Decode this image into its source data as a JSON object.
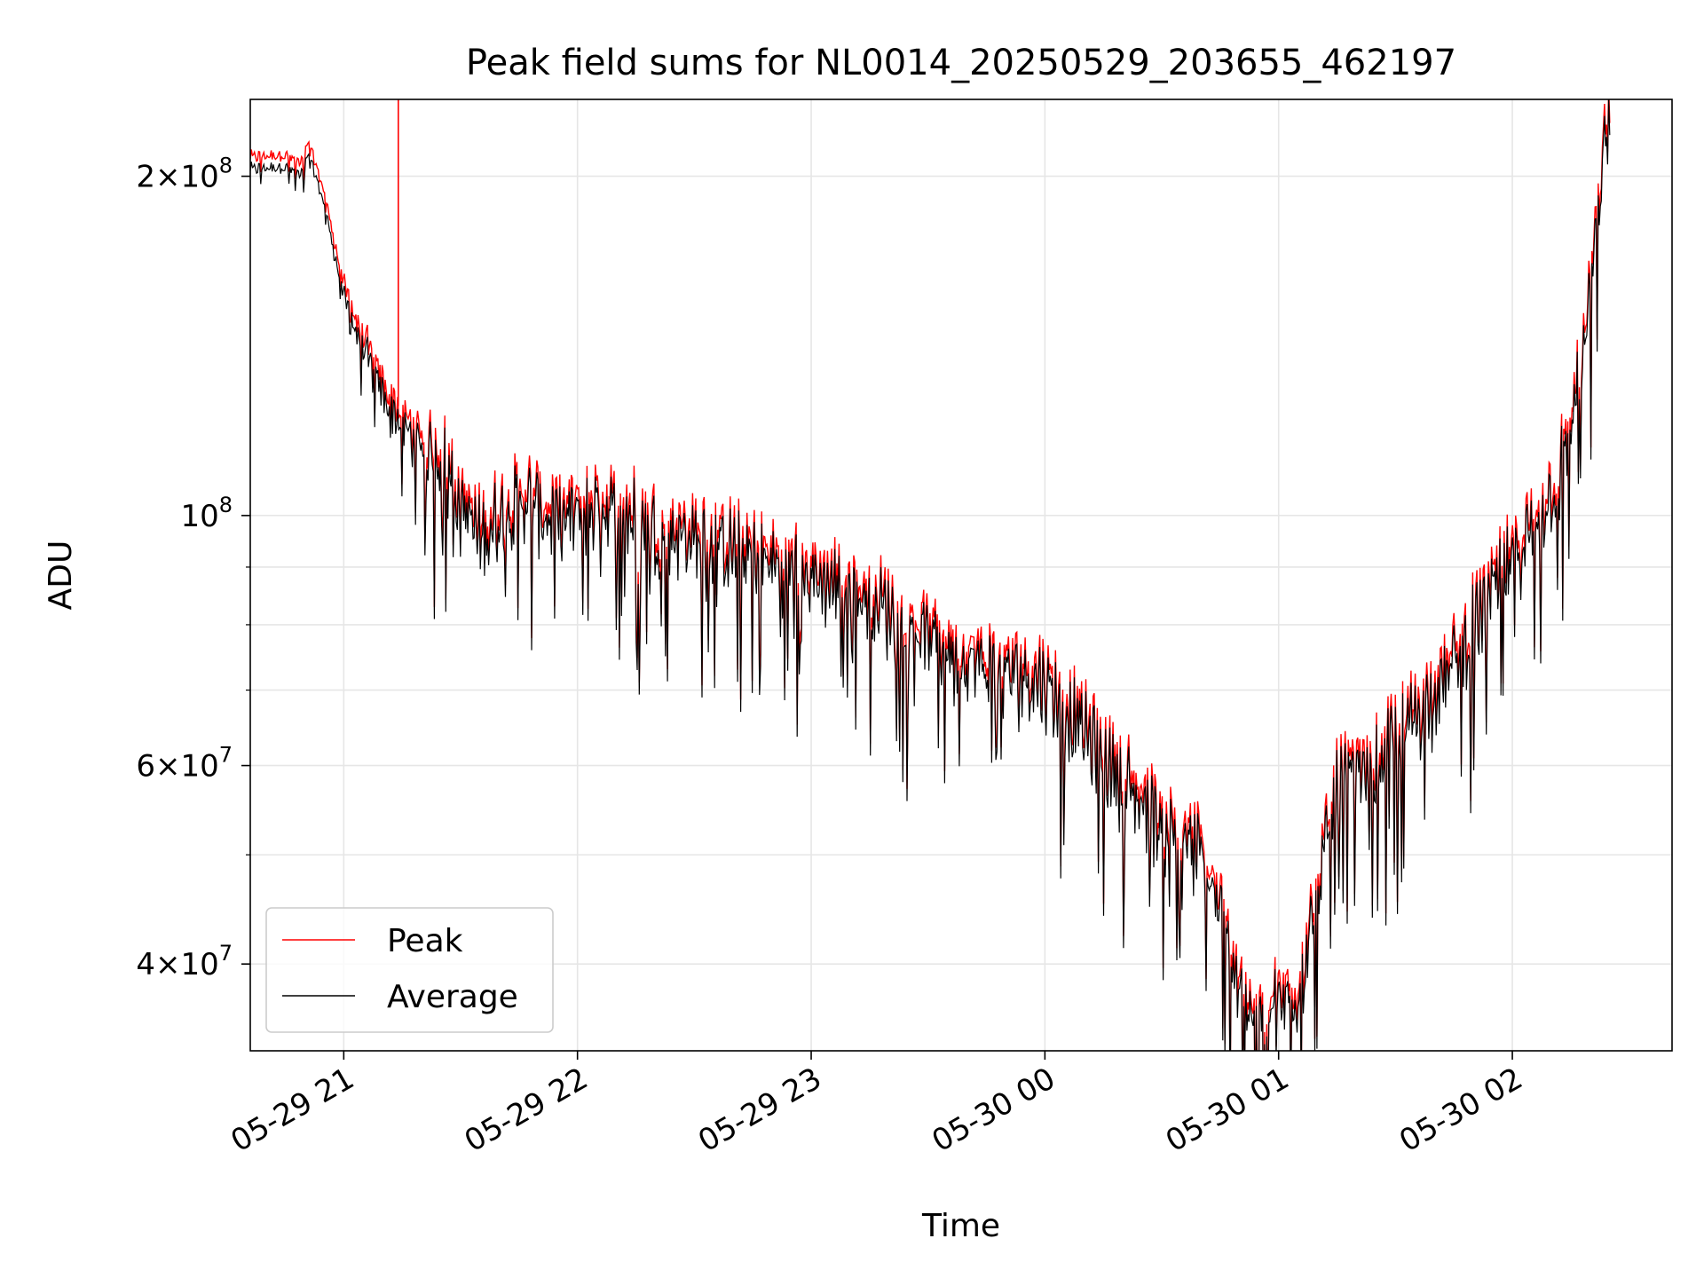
{
  "chart_data": {
    "type": "line",
    "title": "Peak field sums for NL0014_20250529_203655_462197",
    "xlabel": "Time",
    "ylabel": "ADU",
    "y_scale": "log",
    "grid": true,
    "legend_position": "lower-left",
    "xlim": [
      "2025-05-29 20:36",
      "2025-05-30 02:41"
    ],
    "ylim": [
      33500000,
      234000000
    ],
    "x_ticks": [
      {
        "value": "2025-05-29 21:00",
        "label": "05-29 21"
      },
      {
        "value": "2025-05-29 22:00",
        "label": "05-29 22"
      },
      {
        "value": "2025-05-29 23:00",
        "label": "05-29 23"
      },
      {
        "value": "2025-05-30 00:00",
        "label": "05-30 00"
      },
      {
        "value": "2025-05-30 01:00",
        "label": "05-30 01"
      },
      {
        "value": "2025-05-30 02:00",
        "label": "05-30 02"
      }
    ],
    "y_major_ticks": [
      {
        "value": 40000000,
        "mant": "4",
        "exp": "7"
      },
      {
        "value": 60000000,
        "mant": "6",
        "exp": "7"
      },
      {
        "value": 100000000,
        "mant": "",
        "exp": "8"
      },
      {
        "value": 200000000,
        "mant": "2",
        "exp": "8"
      }
    ],
    "y_minor_ticks": [
      50000000,
      70000000,
      80000000,
      90000000
    ],
    "series": [
      {
        "name": "Peak",
        "color": "#ff0000",
        "x": [
          "2025-05-29 20:36",
          "2025-05-29 20:45",
          "2025-05-29 20:49",
          "2025-05-29 20:51",
          "2025-05-29 20:55",
          "2025-05-29 21:00",
          "2025-05-29 21:05",
          "2025-05-29 21:10",
          "2025-05-29 21:14",
          "2025-05-29 21:14",
          "2025-05-29 21:15",
          "2025-05-29 21:25",
          "2025-05-29 21:35",
          "2025-05-29 21:45",
          "2025-05-29 21:55",
          "2025-05-29 22:05",
          "2025-05-29 22:15",
          "2025-05-29 22:30",
          "2025-05-29 22:45",
          "2025-05-29 23:00",
          "2025-05-29 23:15",
          "2025-05-29 23:30",
          "2025-05-29 23:45",
          "2025-05-30 00:00",
          "2025-05-30 00:10",
          "2025-05-30 00:20",
          "2025-05-30 00:30",
          "2025-05-30 00:40",
          "2025-05-30 00:47",
          "2025-05-30 00:54",
          "2025-05-30 01:05",
          "2025-05-30 01:15",
          "2025-05-30 01:25",
          "2025-05-30 01:35",
          "2025-05-30 01:45",
          "2025-05-30 01:55",
          "2025-05-30 02:05",
          "2025-05-30 02:12",
          "2025-05-30 02:18",
          "2025-05-30 02:22",
          "2025-05-30 02:25"
        ],
        "y": [
          204000000,
          205000000,
          201000000,
          210000000,
          190000000,
          158000000,
          142000000,
          130000000,
          125000000,
          234000000,
          123000000,
          115000000,
          98000000,
          108000000,
          102000000,
          106000000,
          103000000,
          99000000,
          96000000,
          92000000,
          88000000,
          82000000,
          77000000,
          75000000,
          68000000,
          62000000,
          56000000,
          53000000,
          45000000,
          37000000,
          40000000,
          60000000,
          63000000,
          69000000,
          77000000,
          88000000,
          100000000,
          112000000,
          140000000,
          190000000,
          234000000
        ]
      },
      {
        "name": "Average",
        "color": "#000000",
        "x": [
          "2025-05-29 20:36",
          "2025-05-29 20:45",
          "2025-05-29 20:49",
          "2025-05-29 20:51",
          "2025-05-29 20:55",
          "2025-05-29 21:00",
          "2025-05-29 21:05",
          "2025-05-29 21:10",
          "2025-05-29 21:15",
          "2025-05-29 21:25",
          "2025-05-29 21:35",
          "2025-05-29 21:45",
          "2025-05-29 21:55",
          "2025-05-29 22:05",
          "2025-05-29 22:15",
          "2025-05-29 22:30",
          "2025-05-29 22:45",
          "2025-05-29 23:00",
          "2025-05-29 23:15",
          "2025-05-29 23:30",
          "2025-05-29 23:45",
          "2025-05-30 00:00",
          "2025-05-30 00:10",
          "2025-05-30 00:20",
          "2025-05-30 00:30",
          "2025-05-30 00:40",
          "2025-05-30 00:47",
          "2025-05-30 00:54",
          "2025-05-30 01:05",
          "2025-05-30 01:15",
          "2025-05-30 01:25",
          "2025-05-30 01:35",
          "2025-05-30 01:45",
          "2025-05-30 01:55",
          "2025-05-30 02:05",
          "2025-05-30 02:12",
          "2025-05-30 02:18",
          "2025-05-30 02:22",
          "2025-05-30 02:25"
        ],
        "y": [
          203000000,
          204000000,
          200000000,
          209000000,
          189000000,
          156000000,
          140000000,
          128000000,
          120000000,
          112000000,
          95000000,
          104000000,
          98000000,
          102000000,
          99000000,
          95000000,
          92000000,
          88000000,
          84000000,
          78000000,
          73000000,
          71000000,
          64000000,
          58000000,
          53000000,
          50000000,
          42000000,
          35000000,
          38000000,
          57000000,
          60000000,
          66000000,
          74000000,
          85000000,
          97000000,
          108000000,
          136000000,
          185000000,
          232000000
        ]
      }
    ]
  }
}
